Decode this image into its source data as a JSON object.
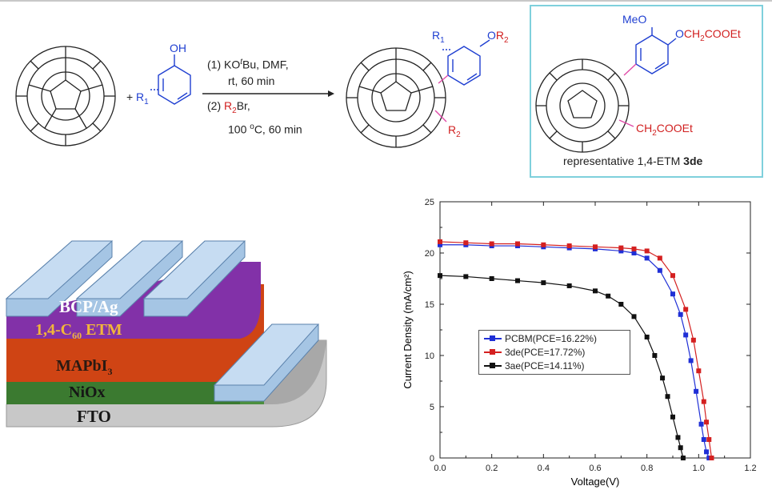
{
  "scheme": {
    "plus": "+",
    "phenol_oh": "OH",
    "phenol_r1": "R",
    "phenol_r1_sub": "1",
    "step1_prefix": "(1) KO",
    "step1_sup": "t",
    "step1_suffix": "Bu, DMF,",
    "step1_cond": "rt, 60 min",
    "step2_prefix": "(2) ",
    "step2_reagent": "R",
    "step2_sub": "2",
    "step2_suffix": "Br,",
    "step2_cond_prefix": "100 ",
    "step2_cond_sup": "o",
    "step2_cond_suffix": "C, 60 min",
    "product_r1": "R",
    "product_r1_sub": "1",
    "product_o": "O",
    "product_r2": "R",
    "product_r2_sub": "2",
    "product_r2_bottom": "R",
    "product_r2_bottom_sub": "2",
    "rep_meo": "MeO",
    "rep_o": "O",
    "rep_ester_top": "CH",
    "rep_ester_top_sub": "2",
    "rep_ester_top_suffix": "COOEt",
    "rep_ester_bottom": "CH",
    "rep_ester_bottom_sub": "2",
    "rep_ester_bottom_suffix": "COOEt",
    "rep_caption": "representative 1,4-ETM ",
    "rep_caption_bold": "3de"
  },
  "device": {
    "layers": [
      {
        "label": "BCP/Ag",
        "color": "#8fb4d8"
      },
      {
        "label_main": "1,4-C",
        "label_sub": "60",
        "label_tail": " ETM",
        "color": "#7b2fa3"
      },
      {
        "label_main": "MAPbI",
        "label_sub": "3",
        "color": "#c8401a"
      },
      {
        "label": "NiOx",
        "color": "#3f8c3a"
      },
      {
        "label": "FTO",
        "color": "#b4b4b4"
      }
    ]
  },
  "chart_data": {
    "type": "line",
    "xlabel": "Voltage(V)",
    "ylabel": "Current Density (mA/cm²)",
    "xlim": [
      0.0,
      1.2
    ],
    "ylim": [
      0,
      25
    ],
    "xticks": [
      "0.0",
      "0.2",
      "0.4",
      "0.6",
      "0.8",
      "1.0",
      "1.2"
    ],
    "yticks": [
      "0",
      "5",
      "10",
      "15",
      "20",
      "25"
    ],
    "legend_position": "center-left",
    "series": [
      {
        "name": "PCBM(PCE=16.22%)",
        "color": "#1f2fd6",
        "x": [
          0.0,
          0.1,
          0.2,
          0.3,
          0.4,
          0.5,
          0.6,
          0.7,
          0.75,
          0.8,
          0.85,
          0.9,
          0.93,
          0.95,
          0.97,
          0.99,
          1.01,
          1.02,
          1.03,
          1.04
        ],
        "y": [
          20.8,
          20.8,
          20.7,
          20.7,
          20.6,
          20.5,
          20.4,
          20.2,
          20.0,
          19.5,
          18.3,
          16.0,
          14.0,
          12.0,
          9.5,
          6.5,
          3.3,
          1.8,
          0.6,
          0.0
        ]
      },
      {
        "name": "3de(PCE=17.72%)",
        "color": "#d42020",
        "x": [
          0.0,
          0.1,
          0.2,
          0.3,
          0.4,
          0.5,
          0.6,
          0.7,
          0.75,
          0.8,
          0.85,
          0.9,
          0.95,
          0.98,
          1.0,
          1.02,
          1.03,
          1.04,
          1.05
        ],
        "y": [
          21.1,
          21.0,
          20.9,
          20.9,
          20.8,
          20.7,
          20.6,
          20.5,
          20.4,
          20.2,
          19.5,
          17.8,
          14.5,
          11.5,
          8.5,
          5.5,
          3.5,
          1.8,
          0.0
        ]
      },
      {
        "name": "3ae(PCE=14.11%)",
        "color": "#111111",
        "x": [
          0.0,
          0.1,
          0.2,
          0.3,
          0.4,
          0.5,
          0.6,
          0.65,
          0.7,
          0.75,
          0.8,
          0.83,
          0.86,
          0.88,
          0.9,
          0.92,
          0.93,
          0.94
        ],
        "y": [
          17.8,
          17.7,
          17.5,
          17.3,
          17.1,
          16.8,
          16.3,
          15.8,
          15.0,
          13.8,
          11.8,
          10.0,
          7.8,
          6.0,
          4.0,
          2.0,
          1.0,
          0.0
        ]
      }
    ]
  }
}
